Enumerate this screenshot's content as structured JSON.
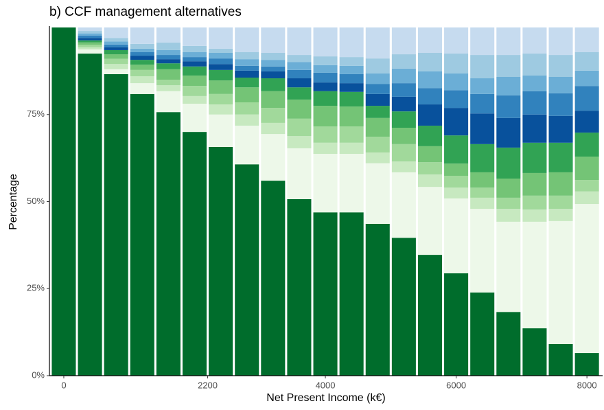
{
  "chart_data": {
    "type": "stacked_bar",
    "title": "b) CCF management alternatives",
    "xlabel": "Net Present Income (k€)",
    "ylabel": "Percentage",
    "x": [
      0,
      400,
      800,
      1200,
      1600,
      2000,
      2400,
      2800,
      3200,
      3600,
      4000,
      4400,
      4800,
      5200,
      5600,
      6000,
      6400,
      6800,
      7200,
      7600,
      8000
    ],
    "xlim": [
      -220,
      8240
    ],
    "xticks": [
      0,
      2200,
      4000,
      6000,
      8000
    ],
    "ylim": [
      0,
      100
    ],
    "yticks": [
      {
        "value": 0,
        "label": "0%"
      },
      {
        "value": 25,
        "label": "25%"
      },
      {
        "value": 50,
        "label": "50%"
      },
      {
        "value": 75,
        "label": "75%"
      }
    ],
    "grid": false,
    "series": [
      {
        "color": "#006d2c",
        "values": [
          100,
          92.5,
          86.6,
          80.9,
          75.7,
          70,
          65.7,
          60.7,
          56,
          50.7,
          46.9,
          46.9,
          43.6,
          39.6,
          34.7,
          29.4,
          23.9,
          18.3,
          13.6,
          9.1,
          6.5
        ]
      },
      {
        "color": "#edf8e9",
        "values": [
          0,
          1.2,
          1.4,
          3.1,
          6.0,
          8.1,
          9.3,
          11.1,
          13.4,
          14.6,
          16.8,
          16.8,
          17.4,
          18.8,
          19.5,
          21.5,
          24.0,
          25.9,
          30.6,
          35.3,
          42.8
        ]
      },
      {
        "color": "#c7e9c0",
        "values": [
          0,
          0.6,
          1.5,
          2.0,
          1.7,
          2.2,
          2.9,
          3.2,
          3.2,
          3.5,
          3.2,
          3.2,
          3.1,
          3.1,
          3.6,
          3.1,
          3.2,
          3.7,
          3.5,
          3.5,
          3.6
        ]
      },
      {
        "color": "#a1d99b",
        "values": [
          0,
          0.7,
          1.5,
          1.8,
          1.6,
          2.9,
          3.0,
          3.5,
          4.3,
          5.0,
          4.7,
          4.7,
          4.5,
          5.0,
          3.5,
          3.4,
          2.9,
          3.2,
          4.0,
          3.8,
          3.3
        ]
      },
      {
        "color": "#74c476",
        "values": [
          0,
          0.7,
          1.3,
          1.5,
          3.0,
          3.0,
          3.9,
          4.3,
          4.8,
          5.5,
          5.9,
          5.7,
          5.4,
          4.7,
          4.6,
          3.5,
          4.4,
          5.5,
          6.5,
          6.7,
          6.7
        ]
      },
      {
        "color": "#31a354",
        "values": [
          0,
          0.6,
          1.2,
          1.4,
          1.7,
          2.6,
          3.0,
          2.8,
          3.7,
          3.5,
          4.2,
          4.2,
          3.5,
          4.7,
          5.9,
          8.1,
          8.1,
          8.9,
          8.7,
          8.5,
          6.9
        ]
      },
      {
        "color": "#08519c",
        "values": [
          0,
          0.7,
          0.8,
          1.2,
          1.2,
          1.5,
          1.7,
          2.0,
          2.0,
          2.6,
          2.5,
          2.5,
          3.4,
          4.2,
          6.1,
          7.9,
          8.8,
          8.5,
          8.1,
          7.7,
          6.3
        ]
      },
      {
        "color": "#3182bd",
        "values": [
          0,
          0.7,
          0.8,
          1.0,
          1.2,
          1.2,
          1.6,
          1.4,
          1.4,
          2.4,
          2.8,
          2.6,
          2.9,
          3.9,
          4.7,
          5.1,
          5.6,
          6.5,
          6.7,
          6.5,
          7.1
        ]
      },
      {
        "color": "#6baed6",
        "values": [
          0,
          0.6,
          0.9,
          1.0,
          1.4,
          1.4,
          1.6,
          1.9,
          1.9,
          2.3,
          2.2,
          2.4,
          3.0,
          4.2,
          4.8,
          4.8,
          4.5,
          5.3,
          4.5,
          4.7,
          4.4
        ]
      },
      {
        "color": "#9ecae1",
        "values": [
          0,
          0.7,
          1.0,
          1.4,
          2.2,
          1.8,
          1.2,
          2.0,
          2.0,
          2.0,
          2.5,
          2.5,
          4.3,
          4.1,
          5.3,
          5.7,
          6.7,
          6.3,
          6.3,
          6.3,
          5.3
        ]
      },
      {
        "color": "#c6dbef",
        "values": [
          0,
          1.0,
          3.0,
          4.7,
          4.3,
          5.3,
          6.1,
          7.1,
          7.3,
          7.9,
          8.3,
          8.5,
          8.9,
          7.7,
          7.3,
          7.5,
          7.9,
          7.9,
          7.5,
          7.9,
          7.1
        ]
      }
    ]
  }
}
